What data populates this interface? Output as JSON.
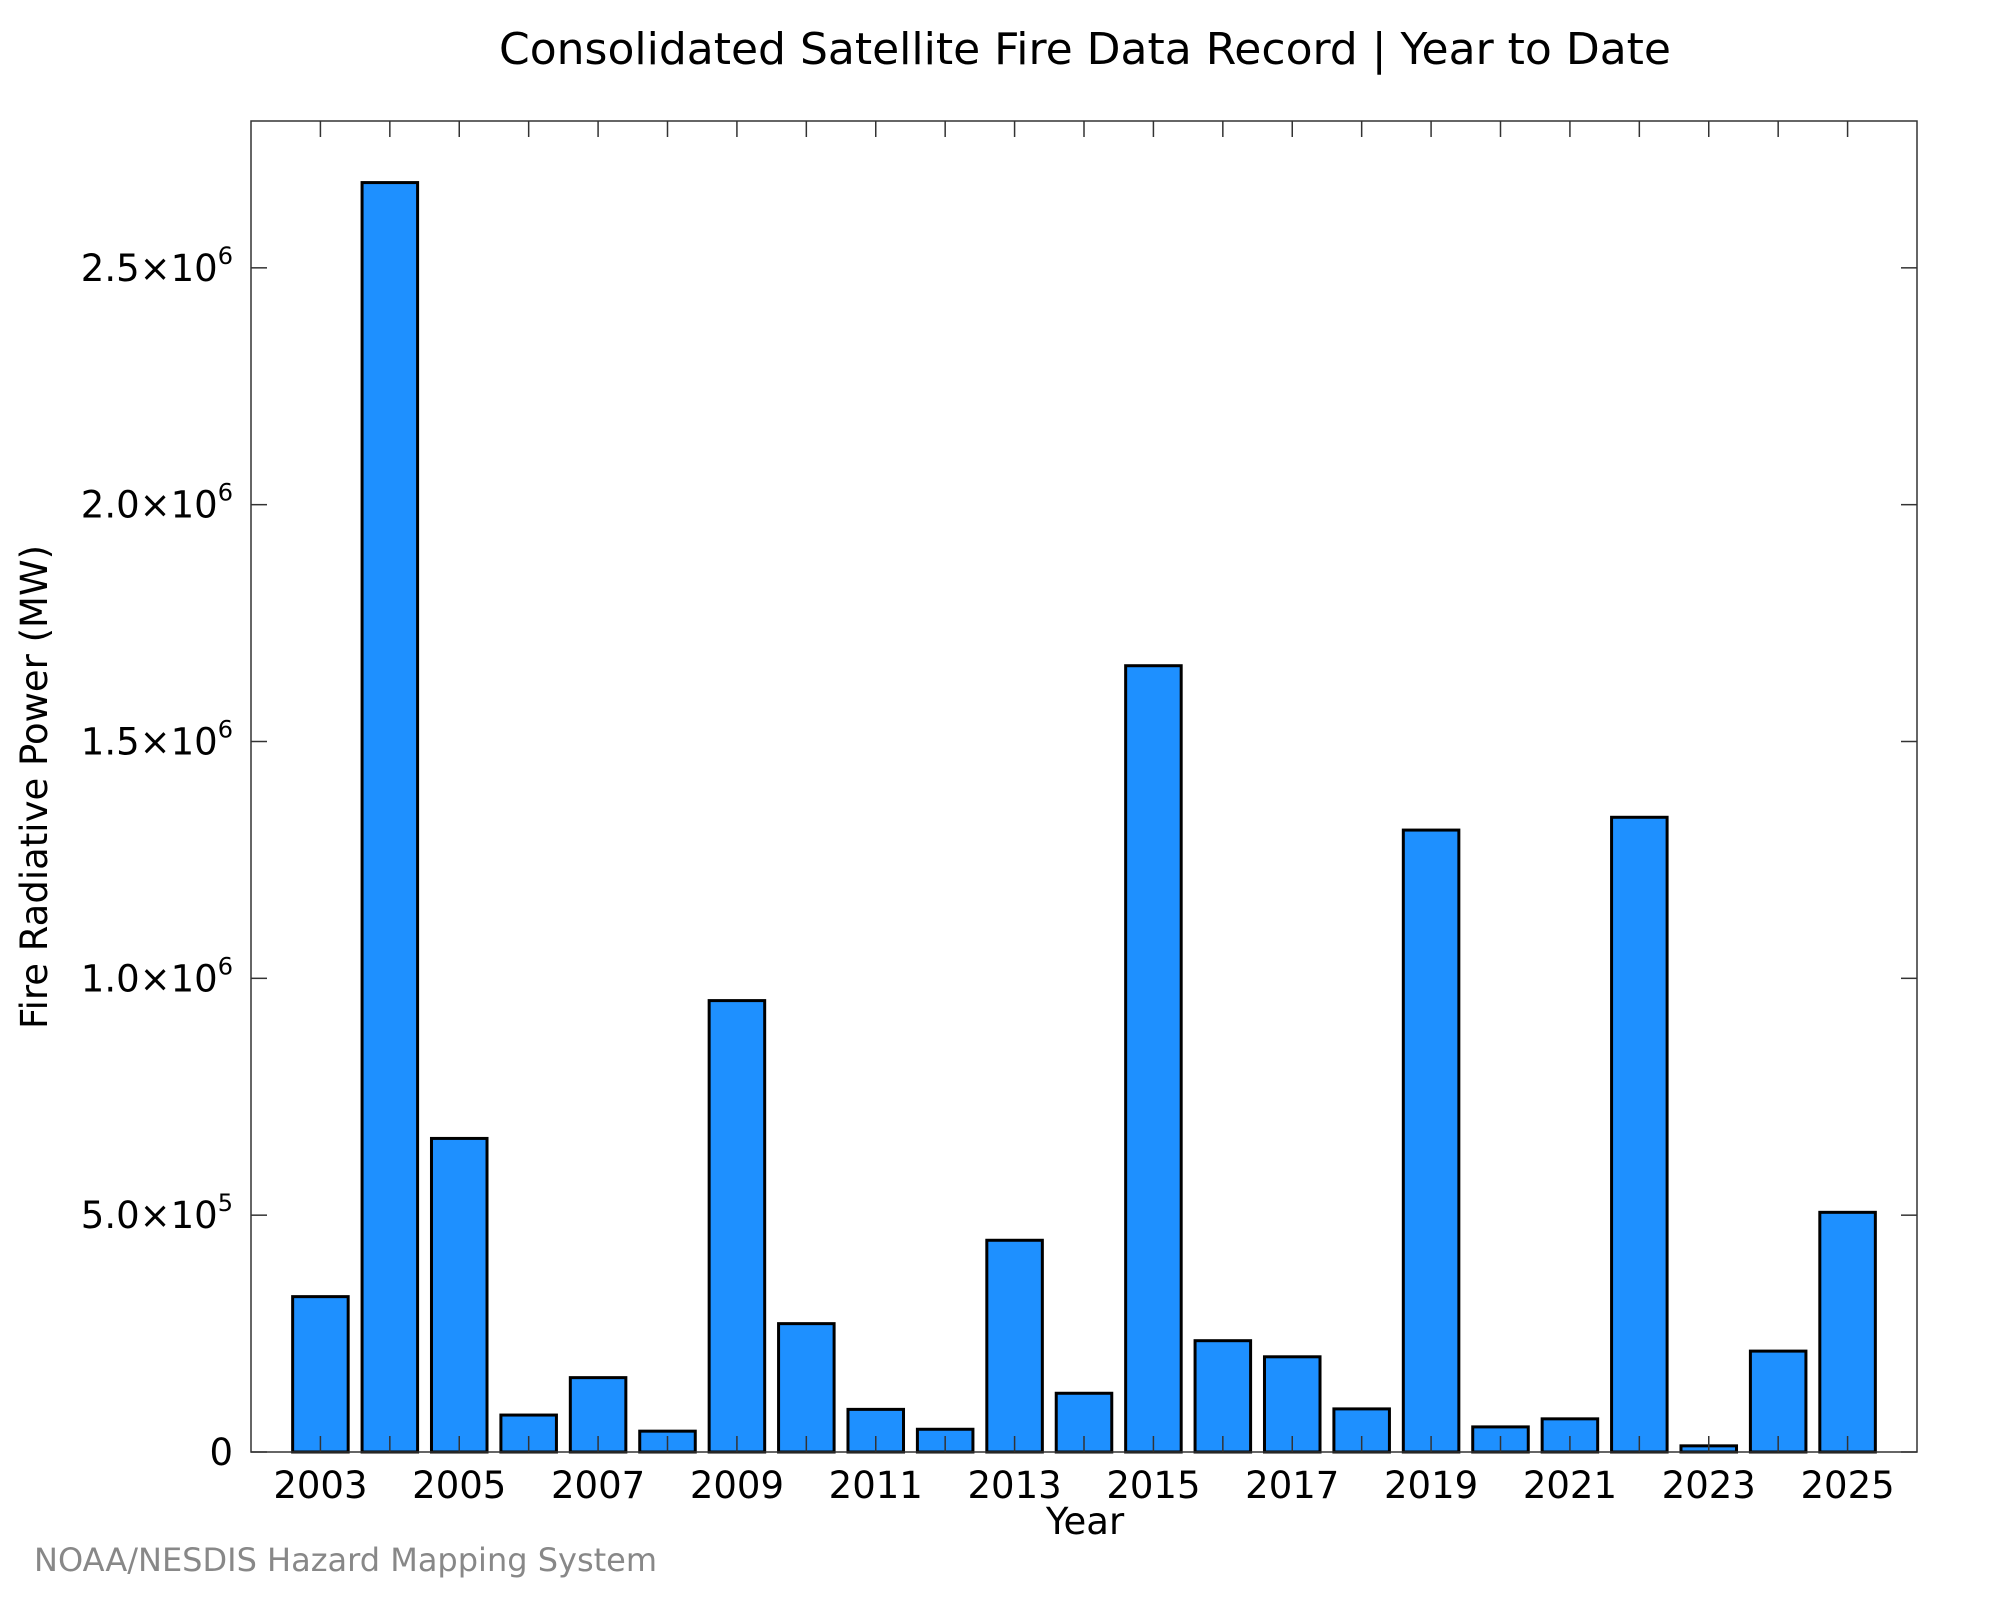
{
  "chart_data": {
    "type": "bar",
    "title": "Consolidated Satellite Fire Data Record | Year to Date",
    "xlabel": "Year",
    "ylabel": "Fire Radiative Power (MW)",
    "categories": [
      2003,
      2004,
      2005,
      2006,
      2007,
      2008,
      2009,
      2010,
      2011,
      2012,
      2013,
      2014,
      2015,
      2016,
      2017,
      2018,
      2019,
      2020,
      2021,
      2022,
      2023,
      2024,
      2025
    ],
    "values": [
      328000,
      2680000,
      662000,
      78000,
      157000,
      44000,
      953000,
      271000,
      90000,
      48000,
      447000,
      124000,
      1660000,
      235000,
      201000,
      91000,
      1313000,
      53000,
      70000,
      1340000,
      13000,
      213000,
      506000
    ],
    "x_tick_labels": [
      "2003",
      "2005",
      "2007",
      "2009",
      "2011",
      "2013",
      "2015",
      "2017",
      "2019",
      "2021",
      "2023",
      "2025"
    ],
    "y_ticks": [
      {
        "value": 0,
        "mantissa": "0",
        "exponent": ""
      },
      {
        "value": 500000,
        "mantissa": "5.0×10",
        "exponent": "5"
      },
      {
        "value": 1000000,
        "mantissa": "1.0×10",
        "exponent": "6"
      },
      {
        "value": 1500000,
        "mantissa": "1.5×10",
        "exponent": "6"
      },
      {
        "value": 2000000,
        "mantissa": "2.0×10",
        "exponent": "6"
      },
      {
        "value": 2500000,
        "mantissa": "2.5×10",
        "exponent": "6"
      }
    ],
    "xlim": [
      2002,
      2026
    ],
    "ylim": [
      0,
      2810000
    ],
    "bar_color": "#1e90ff",
    "bar_edge_color": "#000000",
    "grid": false,
    "legend": "none"
  },
  "footer": {
    "credit": "NOAA/NESDIS Hazard Mapping System"
  }
}
